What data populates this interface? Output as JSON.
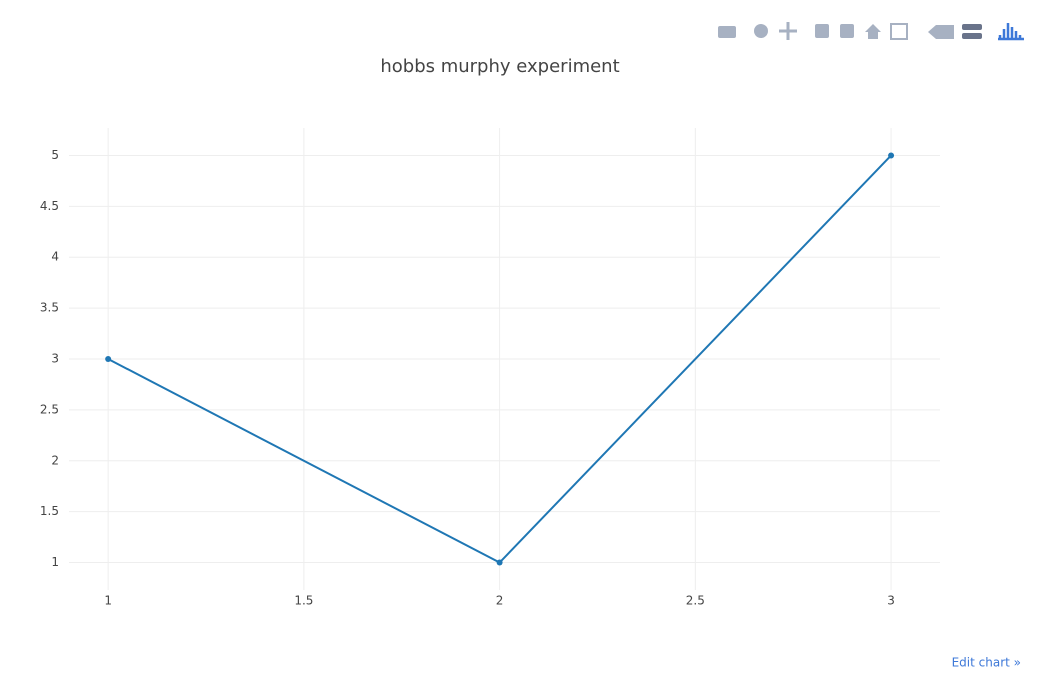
{
  "chart_data": {
    "type": "line",
    "title": "hobbs murphy experiment",
    "x": [
      1,
      2,
      3
    ],
    "values": [
      3,
      1,
      5
    ],
    "color": "#1f77b4",
    "xlim": [
      0.9,
      3.125
    ],
    "ylim": [
      0.73,
      5.27
    ],
    "xticks": [
      1,
      1.5,
      2,
      2.5,
      3
    ],
    "yticks": [
      1,
      1.5,
      2,
      2.5,
      3,
      3.5,
      4,
      4.5,
      5
    ],
    "grid": true,
    "markers": true
  },
  "edit_link": "Edit chart »"
}
